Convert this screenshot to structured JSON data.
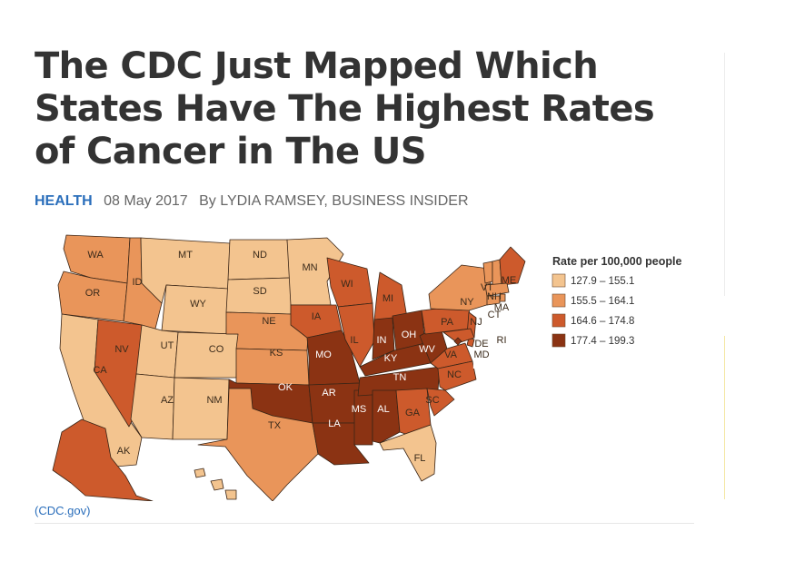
{
  "article": {
    "headline": "The CDC Just Mapped Which States Have The Highest Rates of Cancer in The US",
    "category": "HEALTH",
    "date": "08 May 2017",
    "byline": "By LYDIA RAMSEY, BUSINESS INSIDER",
    "caption": "(CDC.gov)"
  },
  "map": {
    "legend_title": "Rate per 100,000 people",
    "classes": [
      {
        "label": "127.9 – 155.1",
        "color": "#f3c48f"
      },
      {
        "label": "155.5 – 164.1",
        "color": "#e9955a"
      },
      {
        "label": "164.6 – 174.8",
        "color": "#cd5a2c"
      },
      {
        "label": "177.4 – 199.3",
        "color": "#8b3313"
      }
    ],
    "states": {
      "WA": 1,
      "OR": 1,
      "CA": 0,
      "NV": 2,
      "ID": 1,
      "MT": 0,
      "WY": 0,
      "UT": 0,
      "AZ": 0,
      "CO": 0,
      "NM": 0,
      "ND": 0,
      "SD": 0,
      "NE": 1,
      "KS": 1,
      "OK": 3,
      "TX": 1,
      "MN": 0,
      "IA": 2,
      "MO": 3,
      "AR": 3,
      "LA": 3,
      "WI": 2,
      "IL": 2,
      "MS": 3,
      "MI": 2,
      "IN": 3,
      "KY": 3,
      "TN": 3,
      "AL": 3,
      "GA": 2,
      "FL": 0,
      "OH": 3,
      "WV": 3,
      "VA": 2,
      "NC": 2,
      "SC": 2,
      "PA": 2,
      "NY": 1,
      "VT": 1,
      "NH": 1,
      "ME": 2,
      "MA": 1,
      "RI": 1,
      "CT": 1,
      "NJ": 2,
      "DE": 2,
      "MD": 2,
      "DC": 3,
      "AK": 2,
      "HI": 0
    }
  }
}
